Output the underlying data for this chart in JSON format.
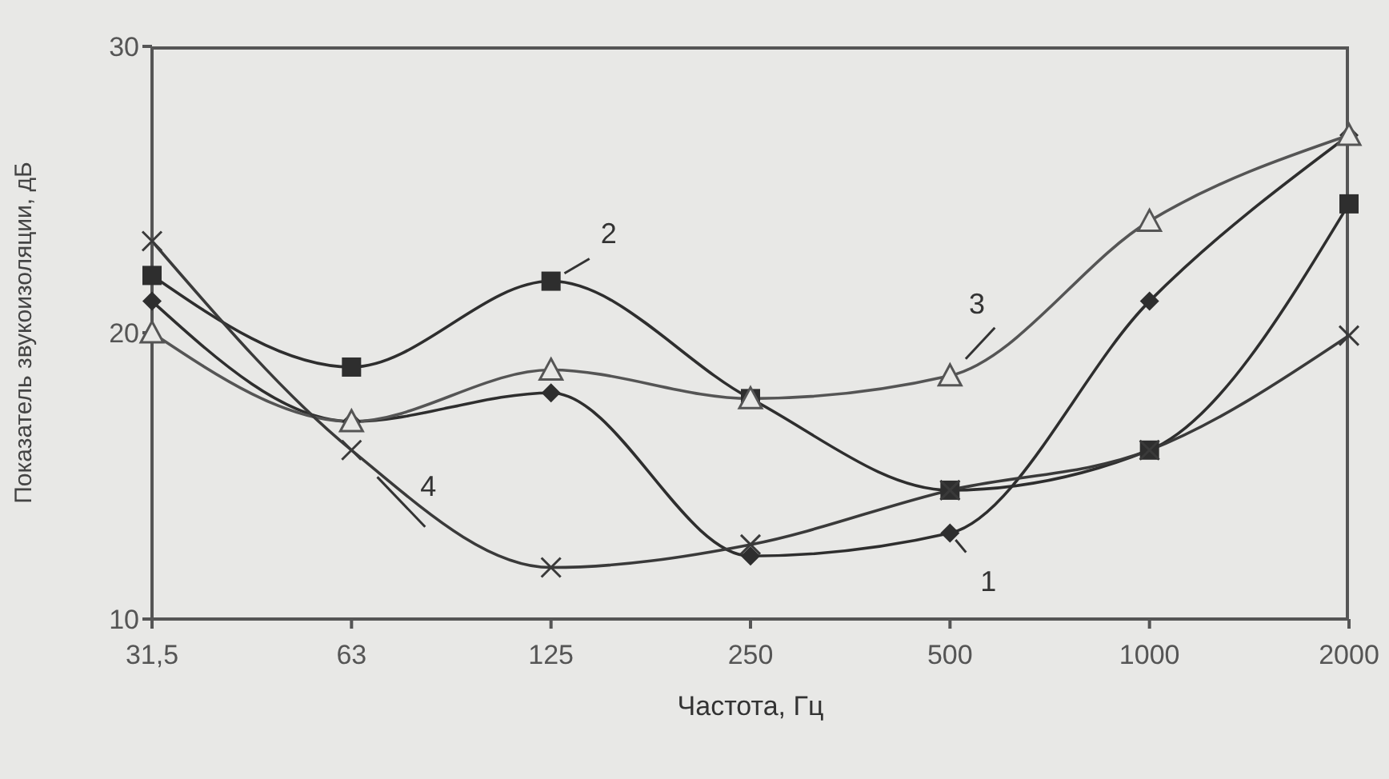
{
  "chart_data": {
    "type": "line",
    "xlabel": "Частота, Гц",
    "ylabel": "Показатель звукоизоляции,  дБ",
    "categories": [
      "31,5",
      "63",
      "125",
      "250",
      "500",
      "1000",
      "2000"
    ],
    "ylim": [
      10,
      30
    ],
    "yticks": [
      10,
      20,
      30
    ],
    "grid": false,
    "line_style": "solid",
    "series": [
      {
        "name": "1",
        "color": "#2e2e2e",
        "marker": "diamond",
        "values": [
          21.1,
          16.9,
          17.9,
          12.2,
          13.0,
          21.1,
          26.9
        ]
      },
      {
        "name": "2",
        "color": "#2e2e2e",
        "marker": "square",
        "values": [
          22.0,
          18.8,
          21.8,
          17.7,
          14.5,
          15.9,
          24.5
        ]
      },
      {
        "name": "3",
        "color": "#555555",
        "marker": "triangle",
        "values": [
          20.0,
          16.9,
          18.7,
          17.7,
          18.5,
          23.9,
          26.9
        ]
      },
      {
        "name": "4",
        "color": "#3a3a3a",
        "marker": "cross",
        "values": [
          23.2,
          15.9,
          11.8,
          12.6,
          14.5,
          15.9,
          19.9
        ]
      }
    ]
  }
}
